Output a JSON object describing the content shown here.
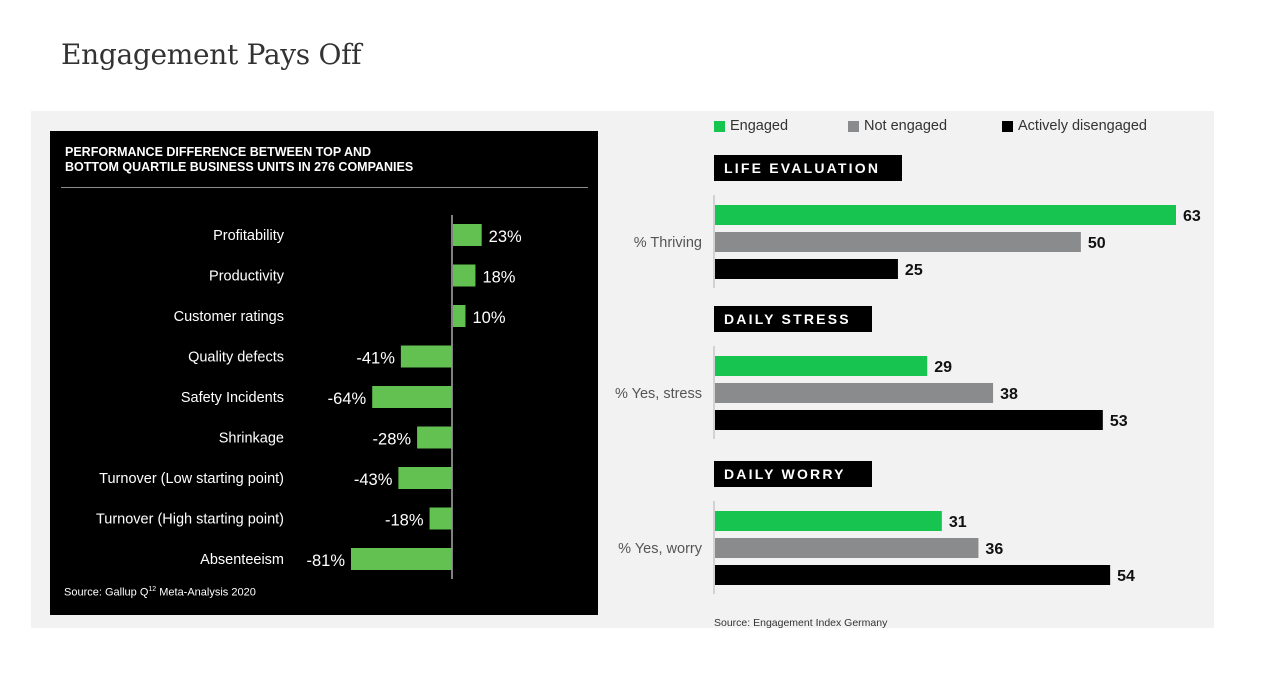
{
  "page": {
    "title": "Engagement Pays Off"
  },
  "left_chart": {
    "title_line1": "PERFORMANCE DIFFERENCE BETWEEN TOP AND",
    "title_line2": "BOTTOM QUARTILE BUSINESS UNITS IN 276 COMPANIES",
    "source_prefix": "Source: Gallup Q",
    "source_sup": "12",
    "source_suffix": " Meta-Analysis 2020",
    "colors": {
      "bar": "#63c152",
      "text": "#ffffff",
      "background": "#000000"
    }
  },
  "right_chart": {
    "source": "Source: Engagement Index Germany",
    "colors": {
      "Engaged": "#17c44f",
      "Not engaged": "#898b8c",
      "Actively disengaged": "#000000"
    }
  },
  "chart_data": [
    {
      "type": "bar",
      "orientation": "horizontal",
      "title": "PERFORMANCE DIFFERENCE BETWEEN TOP AND BOTTOM QUARTILE BUSINESS UNITS IN 276 COMPANIES",
      "categories": [
        "Profitability",
        "Productivity",
        "Customer ratings",
        "Quality defects",
        "Safety Incidents",
        "Shrinkage",
        "Turnover (Low starting point)",
        "Turnover (High starting point)",
        "Absenteeism"
      ],
      "values": [
        23,
        18,
        10,
        -41,
        -64,
        -28,
        -43,
        -18,
        -81
      ],
      "value_labels": [
        "23%",
        "18%",
        "10%",
        "-41%",
        "-64%",
        "-28%",
        "-43%",
        "-18%",
        "-81%"
      ],
      "xlim": [
        -81,
        23
      ]
    },
    {
      "type": "bar",
      "orientation": "horizontal",
      "legend": [
        "Engaged",
        "Not engaged",
        "Actively disengaged"
      ],
      "legend_position": "top",
      "groups": [
        {
          "section": "LIFE EVALUATION",
          "category": "% Thriving",
          "values": {
            "Engaged": 63,
            "Not engaged": 50,
            "Actively disengaged": 25
          }
        },
        {
          "section": "DAILY STRESS",
          "category": "% Yes, stress",
          "values": {
            "Engaged": 29,
            "Not engaged": 38,
            "Actively disengaged": 53
          }
        },
        {
          "section": "DAILY WORRY",
          "category": "% Yes, worry",
          "values": {
            "Engaged": 31,
            "Not engaged": 36,
            "Actively disengaged": 54
          }
        }
      ],
      "xlim": [
        0,
        63
      ]
    }
  ]
}
